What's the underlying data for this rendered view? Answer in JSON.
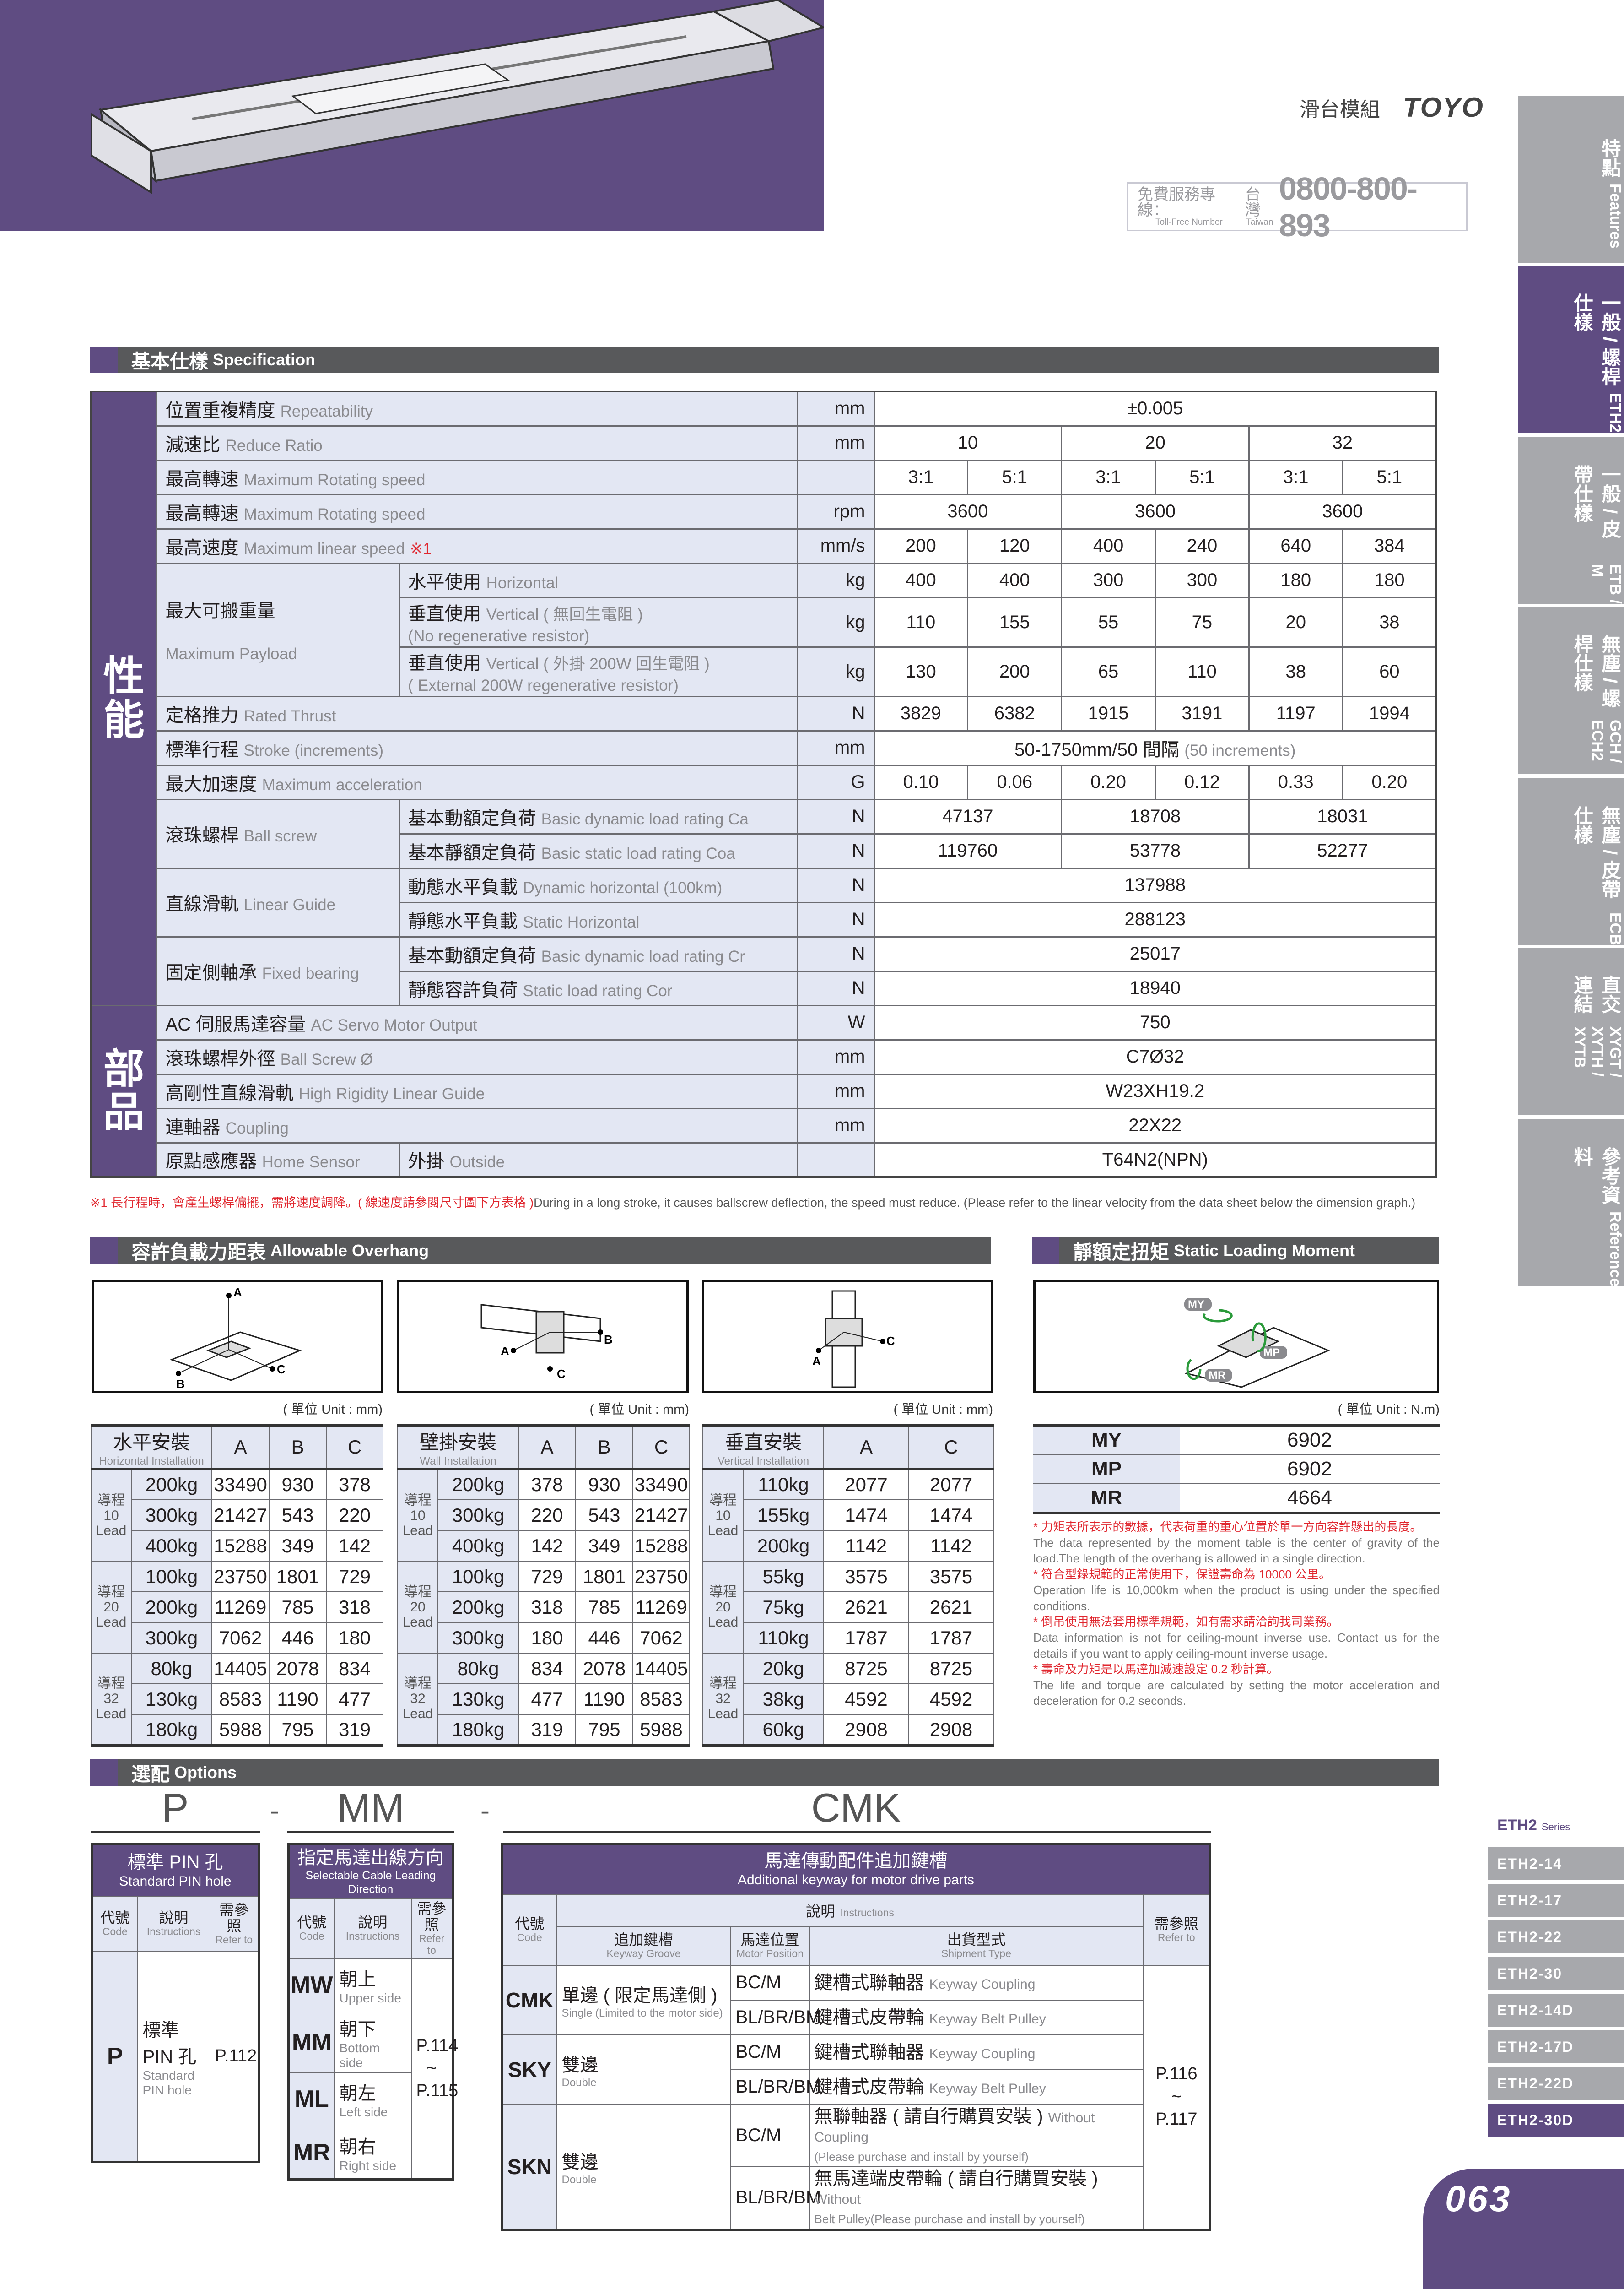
{
  "header": {
    "category": "滑台模組",
    "logo": "TOYO",
    "phone": {
      "label_zh": "免費服務專線：",
      "label_en": "Toll-Free Number",
      "region_zh": "台灣",
      "region_en": "Taiwan",
      "number": "0800-800-893"
    }
  },
  "side_tabs": [
    {
      "zh": "特點",
      "en": "Features",
      "active": false
    },
    {
      "zh": "一般 / 螺桿仕樣",
      "en": "ETH2",
      "active": true
    },
    {
      "zh": "一般 / 皮帶仕樣",
      "en": "ETB / M",
      "active": false
    },
    {
      "zh": "無塵 / 螺桿仕樣",
      "en": "GCH / ECH2",
      "active": false
    },
    {
      "zh": "無塵 / 皮帶仕樣",
      "en": "ECB",
      "active": false
    },
    {
      "zh": "直交連結",
      "en": "XYGT / XYTH / XYTB",
      "active": false
    },
    {
      "zh": "參考資料",
      "en": "Reference",
      "active": false
    }
  ],
  "spec": {
    "title_zh": "基本仕樣",
    "title_en": "Specification",
    "performance": {
      "label": "性能",
      "rows": [
        {
          "zh": "位置重複精度",
          "en": "Repeatability",
          "unit": "mm",
          "values": [
            "±0.005"
          ]
        },
        {
          "zh": "減速比",
          "en": "Reduce Ratio",
          "unit": "mm",
          "values": [
            "10",
            "20",
            "32"
          ]
        },
        {
          "zh": "最高轉速",
          "en": "Maximum Rotating speed",
          "unit": "",
          "values": [
            "3:1",
            "5:1",
            "3:1",
            "5:1",
            "3:1",
            "5:1"
          ]
        },
        {
          "zh": "最高轉速",
          "en": "Maximum Rotating speed",
          "unit": "rpm",
          "values": [
            "3600",
            "3600",
            "3600"
          ]
        },
        {
          "zh": "最高速度",
          "en": "Maximum linear speed",
          "mark": "※1",
          "unit": "mm/s",
          "values": [
            "200",
            "120",
            "400",
            "240",
            "640",
            "384"
          ]
        },
        {
          "group_zh": "最大可搬重量",
          "group_en": "Maximum Payload",
          "items": [
            {
              "zh": "水平使用",
              "en": "Horizontal",
              "unit": "kg",
              "values": [
                "400",
                "400",
                "300",
                "300",
                "180",
                "180"
              ]
            },
            {
              "zh": "垂直使用",
              "en": "Vertical ( 無回生電阻 )",
              "en2": "(No regenerative resistor)",
              "unit": "kg",
              "values": [
                "110",
                "155",
                "55",
                "75",
                "20",
                "38"
              ]
            },
            {
              "zh": "垂直使用",
              "en": "Vertical ( 外掛 200W 回生電阻 )",
              "en2": "( External 200W regenerative resistor)",
              "unit": "kg",
              "values": [
                "130",
                "200",
                "65",
                "110",
                "38",
                "60"
              ]
            }
          ]
        },
        {
          "zh": "定格推力",
          "en": "Rated Thrust",
          "unit": "N",
          "values": [
            "3829",
            "6382",
            "1915",
            "3191",
            "1197",
            "1994"
          ]
        },
        {
          "zh": "標準行程",
          "en": "Stroke (increments)",
          "unit": "mm",
          "values": [
            "50-1750mm/50 間隔"
          ],
          "values_note": "(50 increments)"
        },
        {
          "zh": "最大加速度",
          "en": "Maximum acceleration",
          "unit": "G",
          "values": [
            "0.10",
            "0.06",
            "0.20",
            "0.12",
            "0.33",
            "0.20"
          ]
        },
        {
          "group_zh": "滾珠螺桿",
          "group_en": "Ball screw",
          "items": [
            {
              "zh": "基本動額定負荷",
              "en": "Basic dynamic load rating Ca",
              "unit": "N",
              "values": [
                "47137",
                "18708",
                "18031"
              ]
            },
            {
              "zh": "基本靜額定負荷",
              "en": "Basic static load rating Coa",
              "unit": "N",
              "values": [
                "119760",
                "53778",
                "52277"
              ]
            }
          ]
        },
        {
          "group_zh": "直線滑軌",
          "group_en": "Linear Guide",
          "items": [
            {
              "zh": "動態水平負載",
              "en": "Dynamic horizontal (100km)",
              "unit": "N",
              "values": [
                "137988"
              ]
            },
            {
              "zh": "靜態水平負載",
              "en": "Static Horizontal",
              "unit": "N",
              "values": [
                "288123"
              ]
            }
          ]
        },
        {
          "group_zh": "固定側軸承",
          "group_en": "Fixed bearing",
          "items": [
            {
              "zh": "基本動額定負荷",
              "en": "Basic dynamic load rating Cr",
              "unit": "N",
              "values": [
                "25017"
              ]
            },
            {
              "zh": "靜態容許負荷",
              "en": "Static load rating Cor",
              "unit": "N",
              "values": [
                "18940"
              ]
            }
          ]
        }
      ]
    },
    "parts": {
      "label": "部品",
      "rows": [
        {
          "zh": "AC 伺服馬達容量",
          "en": "AC Servo Motor Output",
          "unit": "W",
          "values": [
            "750"
          ]
        },
        {
          "zh": "滾珠螺桿外徑",
          "en": "Ball Screw Ø",
          "unit": "mm",
          "values": [
            "C7Ø32"
          ]
        },
        {
          "zh": "高剛性直線滑軌",
          "en": "High Rigidity Linear Guide",
          "unit": "mm",
          "values": [
            "W23XH19.2"
          ]
        },
        {
          "zh": "連軸器",
          "en": "Coupling",
          "unit": "mm",
          "values": [
            "22X22"
          ]
        },
        {
          "zh": "原點感應器",
          "en": "Home Sensor",
          "sub_zh": "外掛",
          "sub_en": "Outside",
          "unit": "",
          "values": [
            "T64N2(NPN)"
          ]
        }
      ]
    },
    "footnote_zh": "※1 長行程時，會產生螺桿偏擺，需將速度調降。( 線速度請參閱尺寸圖下方表格 )",
    "footnote_en": "During in a long stroke, it causes ballscrew deflection, the speed must reduce. (Please refer to the linear velocity from the data sheet below the dimension graph.)"
  },
  "overhang": {
    "title_zh": "容許負載力距表",
    "title_en": "Allowable Overhang",
    "diagram_labels": [
      "A",
      "B",
      "C"
    ],
    "tables": [
      {
        "unit": "( 單位 Unit : mm)",
        "title_zh": "水平安裝",
        "title_en": "Horizontal Installation",
        "columns": [
          "A",
          "B",
          "C"
        ],
        "groups": [
          {
            "lead_zh": "導程",
            "lead": "10",
            "lead_en": "Lead",
            "rows": [
              [
                "200kg",
                "33490",
                "930",
                "378"
              ],
              [
                "300kg",
                "21427",
                "543",
                "220"
              ],
              [
                "400kg",
                "15288",
                "349",
                "142"
              ]
            ]
          },
          {
            "lead_zh": "導程",
            "lead": "20",
            "lead_en": "Lead",
            "rows": [
              [
                "100kg",
                "23750",
                "1801",
                "729"
              ],
              [
                "200kg",
                "11269",
                "785",
                "318"
              ],
              [
                "300kg",
                "7062",
                "446",
                "180"
              ]
            ]
          },
          {
            "lead_zh": "導程",
            "lead": "32",
            "lead_en": "Lead",
            "rows": [
              [
                "80kg",
                "14405",
                "2078",
                "834"
              ],
              [
                "130kg",
                "8583",
                "1190",
                "477"
              ],
              [
                "180kg",
                "5988",
                "795",
                "319"
              ]
            ]
          }
        ]
      },
      {
        "unit": "( 單位 Unit : mm)",
        "title_zh": "壁掛安裝",
        "title_en": "Wall Installation",
        "columns": [
          "A",
          "B",
          "C"
        ],
        "groups": [
          {
            "lead_zh": "導程",
            "lead": "10",
            "lead_en": "Lead",
            "rows": [
              [
                "200kg",
                "378",
                "930",
                "33490"
              ],
              [
                "300kg",
                "220",
                "543",
                "21427"
              ],
              [
                "400kg",
                "142",
                "349",
                "15288"
              ]
            ]
          },
          {
            "lead_zh": "導程",
            "lead": "20",
            "lead_en": "Lead",
            "rows": [
              [
                "100kg",
                "729",
                "1801",
                "23750"
              ],
              [
                "200kg",
                "318",
                "785",
                "11269"
              ],
              [
                "300kg",
                "180",
                "446",
                "7062"
              ]
            ]
          },
          {
            "lead_zh": "導程",
            "lead": "32",
            "lead_en": "Lead",
            "rows": [
              [
                "80kg",
                "834",
                "2078",
                "14405"
              ],
              [
                "130kg",
                "477",
                "1190",
                "8583"
              ],
              [
                "180kg",
                "319",
                "795",
                "5988"
              ]
            ]
          }
        ]
      },
      {
        "unit": "( 單位 Unit : mm)",
        "title_zh": "垂直安裝",
        "title_en": "Vertical Installation",
        "columns": [
          "A",
          "C"
        ],
        "groups": [
          {
            "lead_zh": "導程",
            "lead": "10",
            "lead_en": "Lead",
            "rows": [
              [
                "110kg",
                "2077",
                "2077"
              ],
              [
                "155kg",
                "1474",
                "1474"
              ],
              [
                "200kg",
                "1142",
                "1142"
              ]
            ]
          },
          {
            "lead_zh": "導程",
            "lead": "20",
            "lead_en": "Lead",
            "rows": [
              [
                "55kg",
                "3575",
                "3575"
              ],
              [
                "75kg",
                "2621",
                "2621"
              ],
              [
                "110kg",
                "1787",
                "1787"
              ]
            ]
          },
          {
            "lead_zh": "導程",
            "lead": "32",
            "lead_en": "Lead",
            "rows": [
              [
                "20kg",
                "8725",
                "8725"
              ],
              [
                "38kg",
                "4592",
                "4592"
              ],
              [
                "60kg",
                "2908",
                "2908"
              ]
            ]
          }
        ]
      }
    ]
  },
  "moment": {
    "title_zh": "靜額定扭矩",
    "title_en": "Static Loading Moment",
    "unit": "( 單位 Unit : N.m)",
    "diagram_labels": [
      "MY",
      "MP",
      "MR"
    ],
    "rows": [
      [
        "MY",
        "6902"
      ],
      [
        "MP",
        "6902"
      ],
      [
        "MR",
        "4664"
      ]
    ],
    "notes": [
      {
        "zh": "* 力矩表所表示的數據，代表荷重的重心位置於單一方向容許懸出的長度。",
        "en": "The data represented by the moment table is the center of gravity of the load.The length of the overhang is allowed in a single direction."
      },
      {
        "zh": "* 符合型錄規範的正常使用下，保證壽命為 10000 公里。",
        "en": "Operation life is 10,000km when the product is using under the specified conditions."
      },
      {
        "zh": "* 倒吊使用無法套用標準規範，如有需求請洽詢我司業務。",
        "en": "Data information is not for ceiling-mount inverse use. Contact us for the details if you want to apply ceiling-mount inverse usage."
      },
      {
        "zh": "* 壽命及力矩是以馬達加減速設定 0.2 秒計算。",
        "en": "The life and torque are calculated by setting the motor acceleration and deceleration for 0.2 seconds."
      }
    ]
  },
  "options": {
    "title_zh": "選配",
    "title_en": "Options",
    "codes": [
      "P",
      "-",
      "MM",
      "-",
      "CMK"
    ],
    "col_code_zh": "代號",
    "col_code_en": "Code",
    "col_inst_zh": "說明",
    "col_inst_en": "Instructions",
    "col_ref_zh": "需參照",
    "col_ref_en": "Refer to",
    "pin": {
      "title_zh": "標準 PIN 孔",
      "title_en": "Standard PIN hole",
      "code": "P",
      "desc_zh": "標準 PIN 孔",
      "desc_en": "Standard PIN hole",
      "refer": "P.112"
    },
    "cable": {
      "title_zh": "指定馬達出線方向",
      "title_en": "Selectable Cable Leading Direction",
      "refer": [
        "P.114",
        "~",
        "P.115"
      ],
      "rows": [
        {
          "code": "MW",
          "zh": "朝上",
          "en": "Upper side"
        },
        {
          "code": "MM",
          "zh": "朝下",
          "en": "Bottom side"
        },
        {
          "code": "ML",
          "zh": "朝左",
          "en": "Left side"
        },
        {
          "code": "MR",
          "zh": "朝右",
          "en": "Right side"
        }
      ]
    },
    "keyway": {
      "title_zh": "馬達傳動配件追加鍵槽",
      "title_en": "Additional keyway for motor drive parts",
      "col_groove_zh": "追加鍵槽",
      "col_groove_en": "Keyway Groove",
      "col_pos_zh": "馬達位置",
      "col_pos_en": "Motor Position",
      "col_ship_zh": "出貨型式",
      "col_ship_en": "Shipment Type",
      "refer": [
        "P.116",
        "~",
        "P.117"
      ],
      "groups": [
        {
          "code": "CMK",
          "zh": "單邊 ( 限定馬達側 )",
          "en": "Single (Limited to the motor side)",
          "rows": [
            {
              "pos": "BC/M",
              "zh": "鍵槽式聯軸器",
              "en": "Keyway Coupling"
            },
            {
              "pos": "BL/BR/BM",
              "zh": "鍵槽式皮帶輪",
              "en": "Keyway Belt Pulley"
            }
          ]
        },
        {
          "code": "SKY",
          "zh": "雙邊",
          "en": "Double",
          "rows": [
            {
              "pos": "BC/M",
              "zh": "鍵槽式聯軸器",
              "en": "Keyway Coupling"
            },
            {
              "pos": "BL/BR/BM",
              "zh": "鍵槽式皮帶輪",
              "en": "Keyway Belt Pulley"
            }
          ]
        },
        {
          "code": "SKN",
          "zh": "雙邊",
          "en": "Double",
          "rows": [
            {
              "pos": "BC/M",
              "zh": "無聯軸器 ( 請自行購買安裝 )",
              "en": "Without Coupling",
              "en2": "(Please purchase and install by yourself)"
            },
            {
              "pos": "BL/BR/BM",
              "zh": "無馬達端皮帶輪 ( 請自行購買安裝 )",
              "en": "Without",
              "en2": "Belt Pulley(Please purchase and install by yourself)"
            }
          ]
        }
      ]
    }
  },
  "series": {
    "title": "ETH2",
    "suffix": "Series",
    "items": [
      "ETH2-14",
      "ETH2-17",
      "ETH2-22",
      "ETH2-30",
      "ETH2-14D",
      "ETH2-17D",
      "ETH2-22D",
      "ETH2-30D"
    ],
    "active": "ETH2-30D"
  },
  "page_number": "063",
  "colors": {
    "brand_purple": "#5f4c82",
    "tab_gray": "#a7a8ac",
    "bar_gray": "#58595b",
    "cell_blue": "#e3e7f3",
    "note_red": "#e0262e"
  }
}
